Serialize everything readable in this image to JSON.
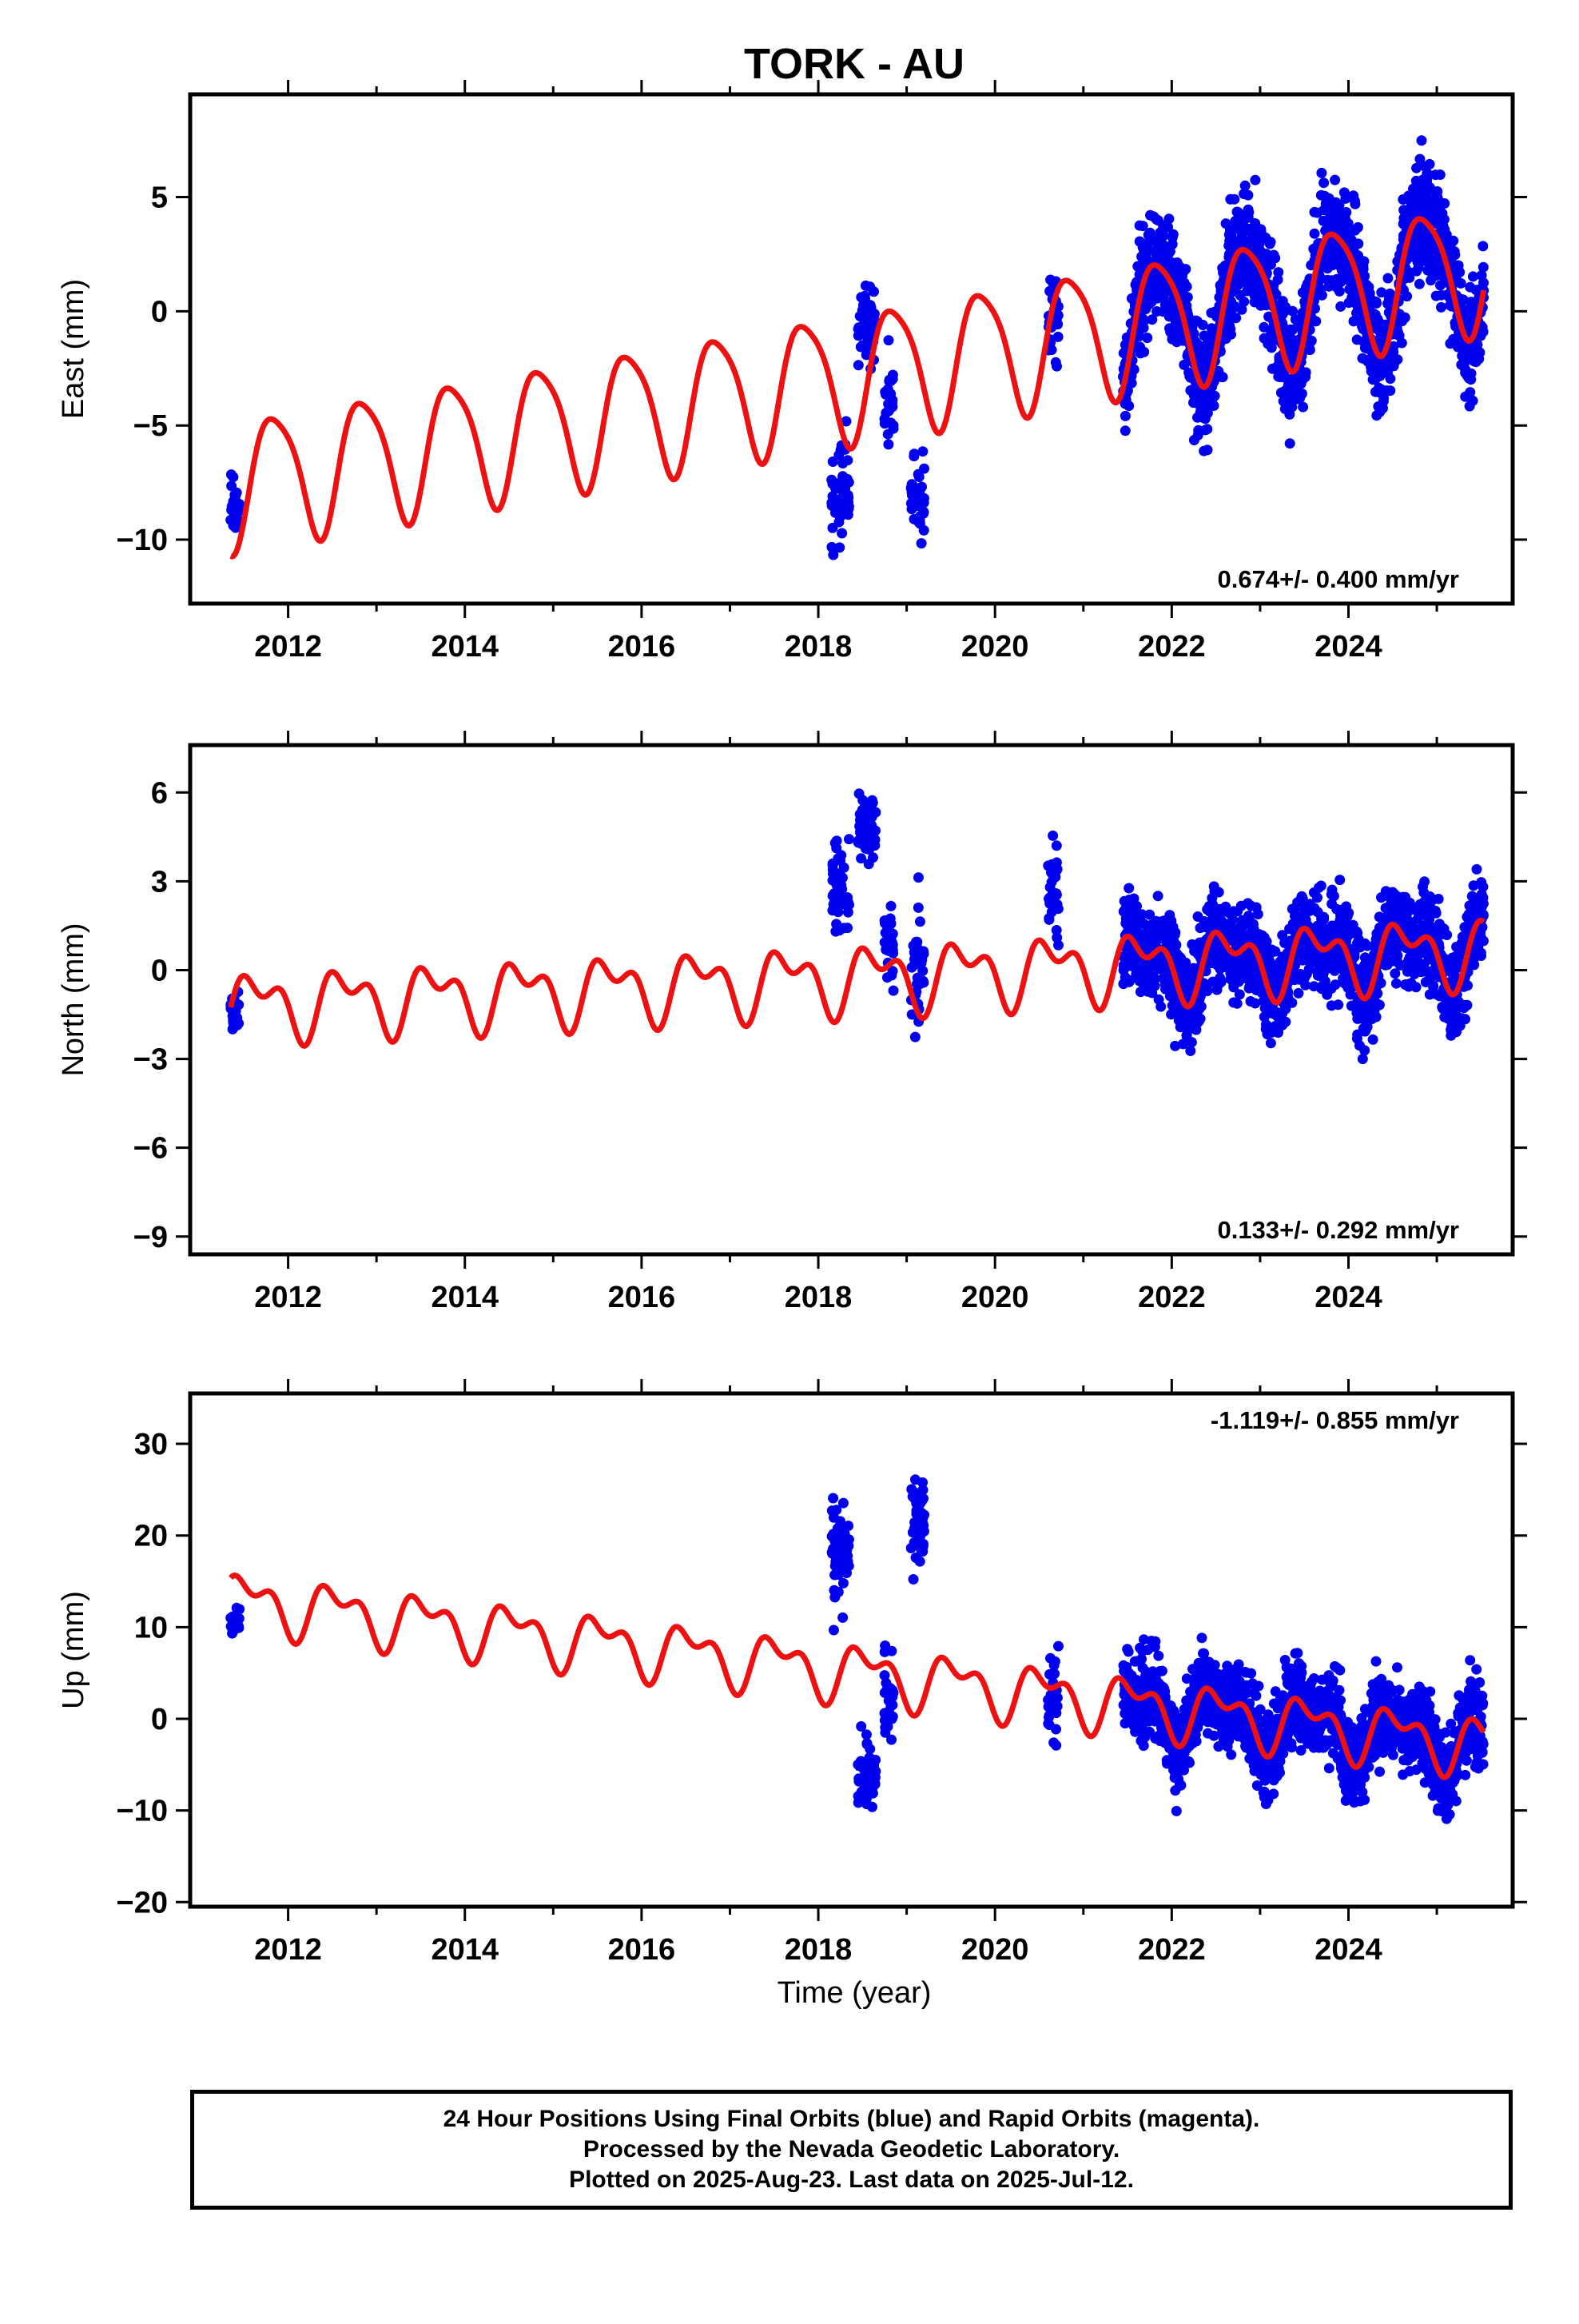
{
  "chart_data": {
    "type": "scatter",
    "title": "TORK - AU",
    "xlabel": "Time (year)",
    "x_ticks": [
      "2012",
      "2014",
      "2016",
      "2018",
      "2020",
      "2022",
      "2024"
    ],
    "xlim": [
      2011.0,
      2025.75
    ],
    "grid": false,
    "legend": "none",
    "colors": {
      "data": "#0000ee",
      "fit": "#ee1111"
    },
    "data_span": [
      2011.35,
      2025.53
    ],
    "panels": [
      {
        "name": "east",
        "ylabel": "East (mm)",
        "ylim": [
          -12.8,
          9.5
        ],
        "y_ticks": [
          5,
          0,
          -5,
          -10
        ],
        "y_tick_labels": [
          "5",
          "0",
          "−5",
          "−10"
        ],
        "rate_label": "0.674+/- 0.400 mm/yr",
        "rate_position": "bottom-right",
        "fit_model": {
          "offset": -7.5,
          "rate": 0.674,
          "annual_amplitude": 2.8,
          "annual_phase_year": 2011.6,
          "semiannual_amplitude": 0.5
        },
        "observations": [
          {
            "start": 2011.35,
            "end": 2011.45,
            "center": -8.5,
            "scatter": 1.3
          },
          {
            "start": 2018.15,
            "end": 2018.35,
            "center": -8.0,
            "scatter": 2.3
          },
          {
            "start": 2018.45,
            "end": 2018.65,
            "center": -0.5,
            "scatter": 1.8
          },
          {
            "start": 2018.75,
            "end": 2018.85,
            "center": -4.0,
            "scatter": 2.5
          },
          {
            "start": 2019.05,
            "end": 2019.2,
            "center": -8.0,
            "scatter": 2.0
          },
          {
            "start": 2020.6,
            "end": 2020.72,
            "center": 0.0,
            "scatter": 2.5
          },
          {
            "start": 2021.45,
            "end": 2025.53,
            "center": 0.0,
            "scatter": 2.6,
            "follows_fit": true
          }
        ]
      },
      {
        "name": "north",
        "ylabel": "North (mm)",
        "ylim": [
          -9.6,
          7.6
        ],
        "y_ticks": [
          6,
          3,
          0,
          -3,
          -6,
          -9
        ],
        "y_tick_labels": [
          "6",
          "3",
          "0",
          "−3",
          "−6",
          "−9"
        ],
        "rate_label": "0.133+/- 0.292 mm/yr",
        "rate_position": "bottom-right",
        "fit_model": {
          "offset": -1.2,
          "rate": 0.133,
          "annual_amplitude": 0.9,
          "annual_phase_year": 2011.4,
          "semiannual_amplitude": 0.6
        },
        "observations": [
          {
            "start": 2011.35,
            "end": 2011.45,
            "center": -1.4,
            "scatter": 0.6
          },
          {
            "start": 2018.15,
            "end": 2018.35,
            "center": 3.0,
            "scatter": 1.8
          },
          {
            "start": 2018.45,
            "end": 2018.65,
            "center": 5.0,
            "scatter": 1.2
          },
          {
            "start": 2018.75,
            "end": 2018.85,
            "center": 0.5,
            "scatter": 1.5
          },
          {
            "start": 2019.05,
            "end": 2019.2,
            "center": 0.0,
            "scatter": 2.3
          },
          {
            "start": 2020.6,
            "end": 2020.72,
            "center": 2.5,
            "scatter": 2.2
          },
          {
            "start": 2021.45,
            "end": 2025.53,
            "center": 0.0,
            "scatter": 1.7,
            "follows_fit": true
          }
        ]
      },
      {
        "name": "up",
        "ylabel": "Up (mm)",
        "ylim": [
          -20.5,
          35.5
        ],
        "y_ticks": [
          30,
          20,
          10,
          0,
          -10,
          -20
        ],
        "y_tick_labels": [
          "30",
          "20",
          "10",
          "0",
          "−10",
          "−20"
        ],
        "rate_label": "-1.119+/- 0.855 mm/yr",
        "rate_position": "top-right",
        "fit_model": {
          "offset": 13.0,
          "rate": -1.119,
          "annual_amplitude": 2.5,
          "annual_phase_year": 2011.3,
          "semiannual_amplitude": 1.6
        },
        "observations": [
          {
            "start": 2011.35,
            "end": 2011.45,
            "center": 10.5,
            "scatter": 1.5
          },
          {
            "start": 2018.15,
            "end": 2018.35,
            "center": 18.0,
            "scatter": 6.0
          },
          {
            "start": 2018.45,
            "end": 2018.65,
            "center": -6.0,
            "scatter": 5.0
          },
          {
            "start": 2018.75,
            "end": 2018.85,
            "center": 2.0,
            "scatter": 5.0
          },
          {
            "start": 2019.05,
            "end": 2019.2,
            "center": 21.0,
            "scatter": 5.0
          },
          {
            "start": 2020.6,
            "end": 2020.72,
            "center": 2.0,
            "scatter": 5.5
          },
          {
            "start": 2021.45,
            "end": 2025.53,
            "center": 0.0,
            "scatter": 5.0,
            "follows_fit": true
          }
        ]
      }
    ]
  },
  "footer": {
    "line1": "24 Hour Positions Using Final Orbits (blue) and Rapid Orbits (magenta).",
    "line2": "Processed by the Nevada Geodetic Laboratory.",
    "line3": "Plotted on 2025-Aug-23. Last data on 2025-Jul-12."
  }
}
